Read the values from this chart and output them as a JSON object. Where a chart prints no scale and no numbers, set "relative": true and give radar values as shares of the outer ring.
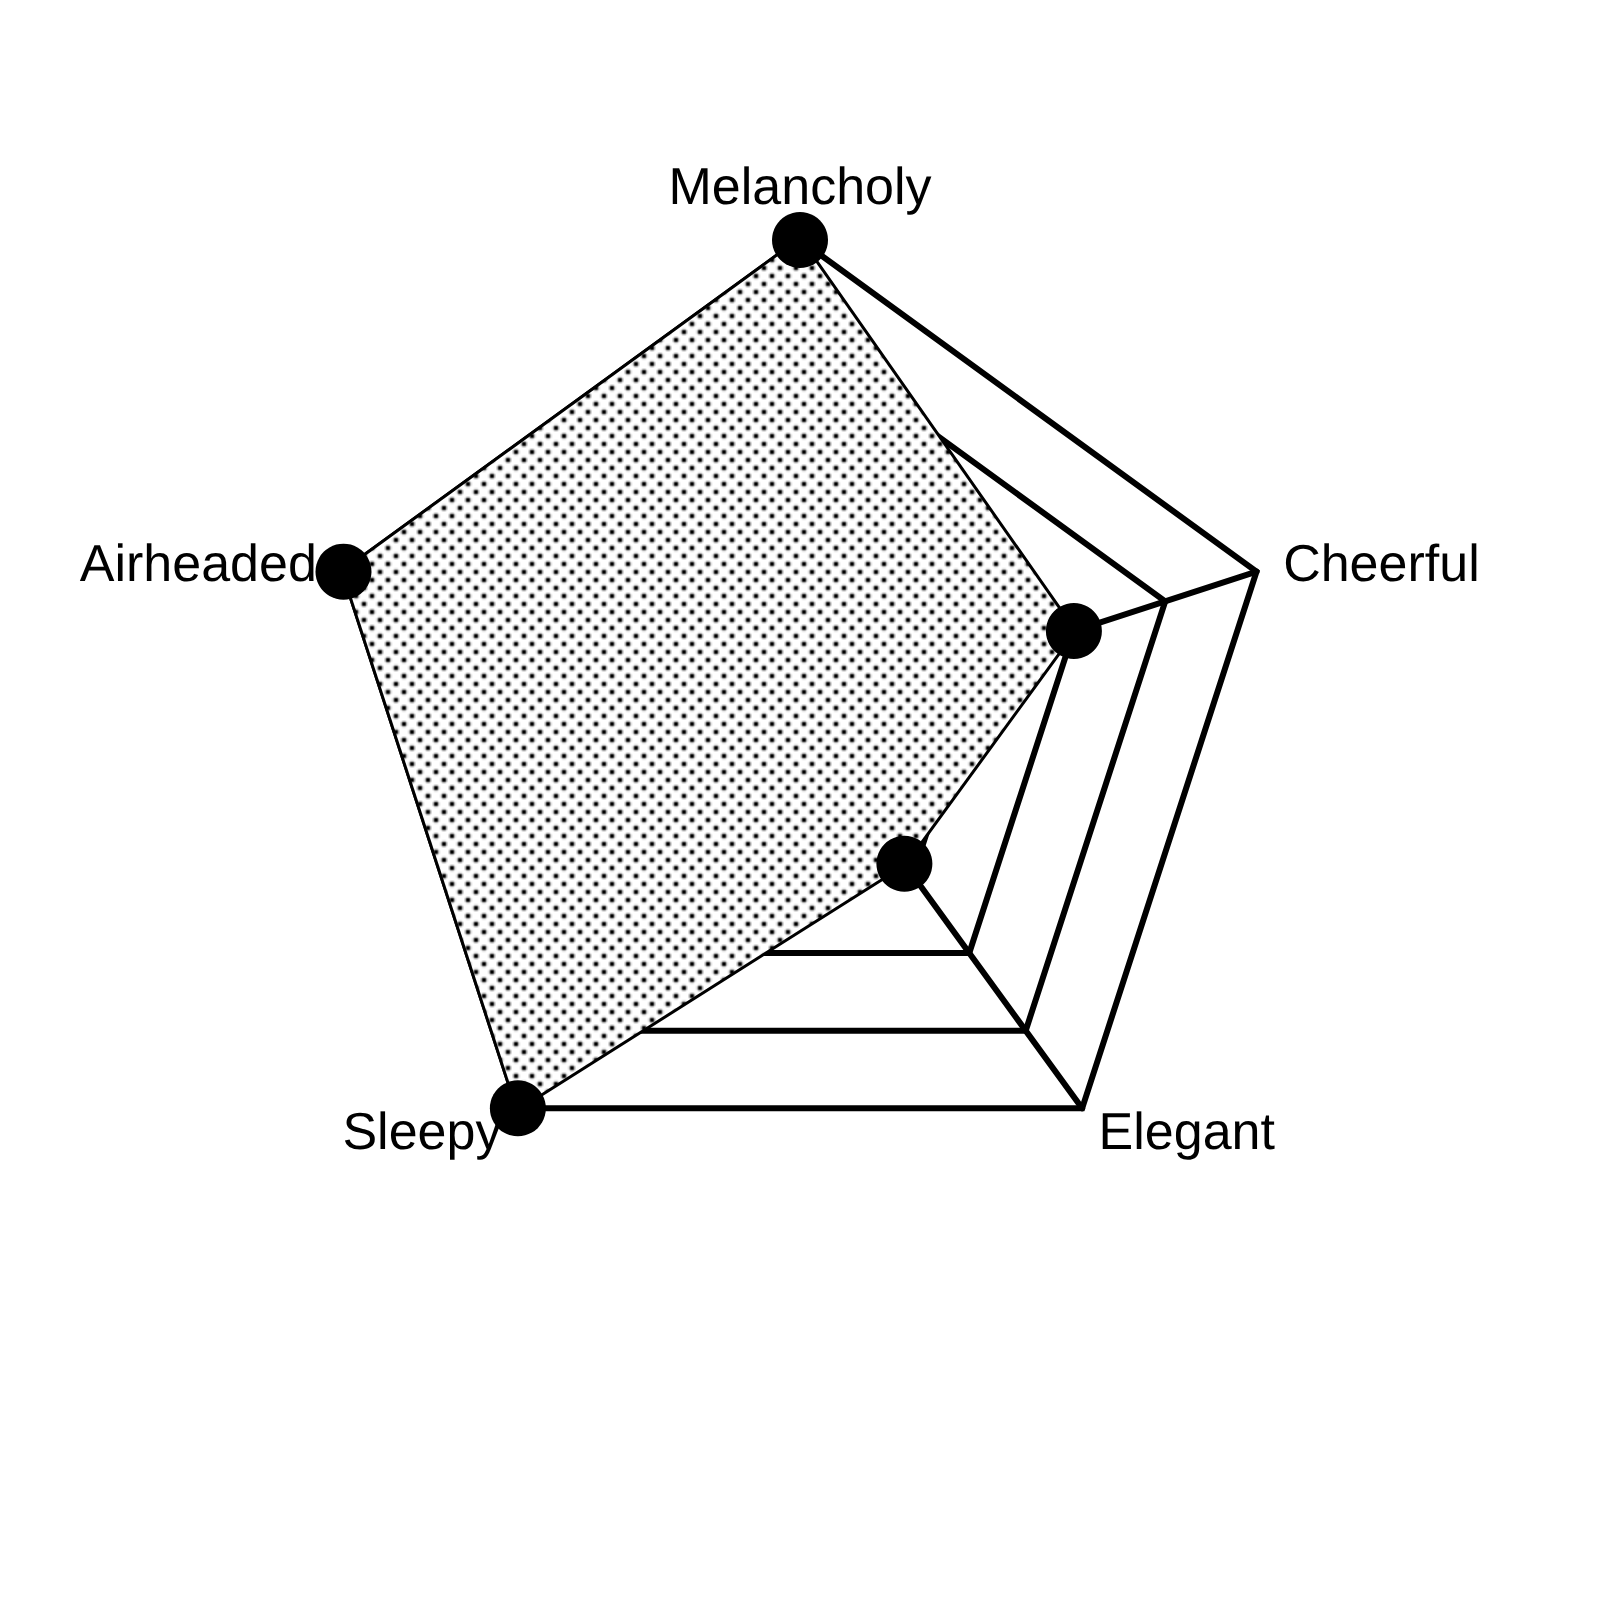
{
  "chart_data": {
    "type": "radar",
    "relative": true,
    "categories": [
      "Melancholy",
      "Cheerful",
      "Elegant",
      "Sleepy",
      "Airheaded"
    ],
    "marker": "circle",
    "series": [
      {
        "color": "#000000",
        "values": [
          1.0,
          0.6,
          0.37,
          1.0,
          1.0
        ]
      }
    ]
  }
}
